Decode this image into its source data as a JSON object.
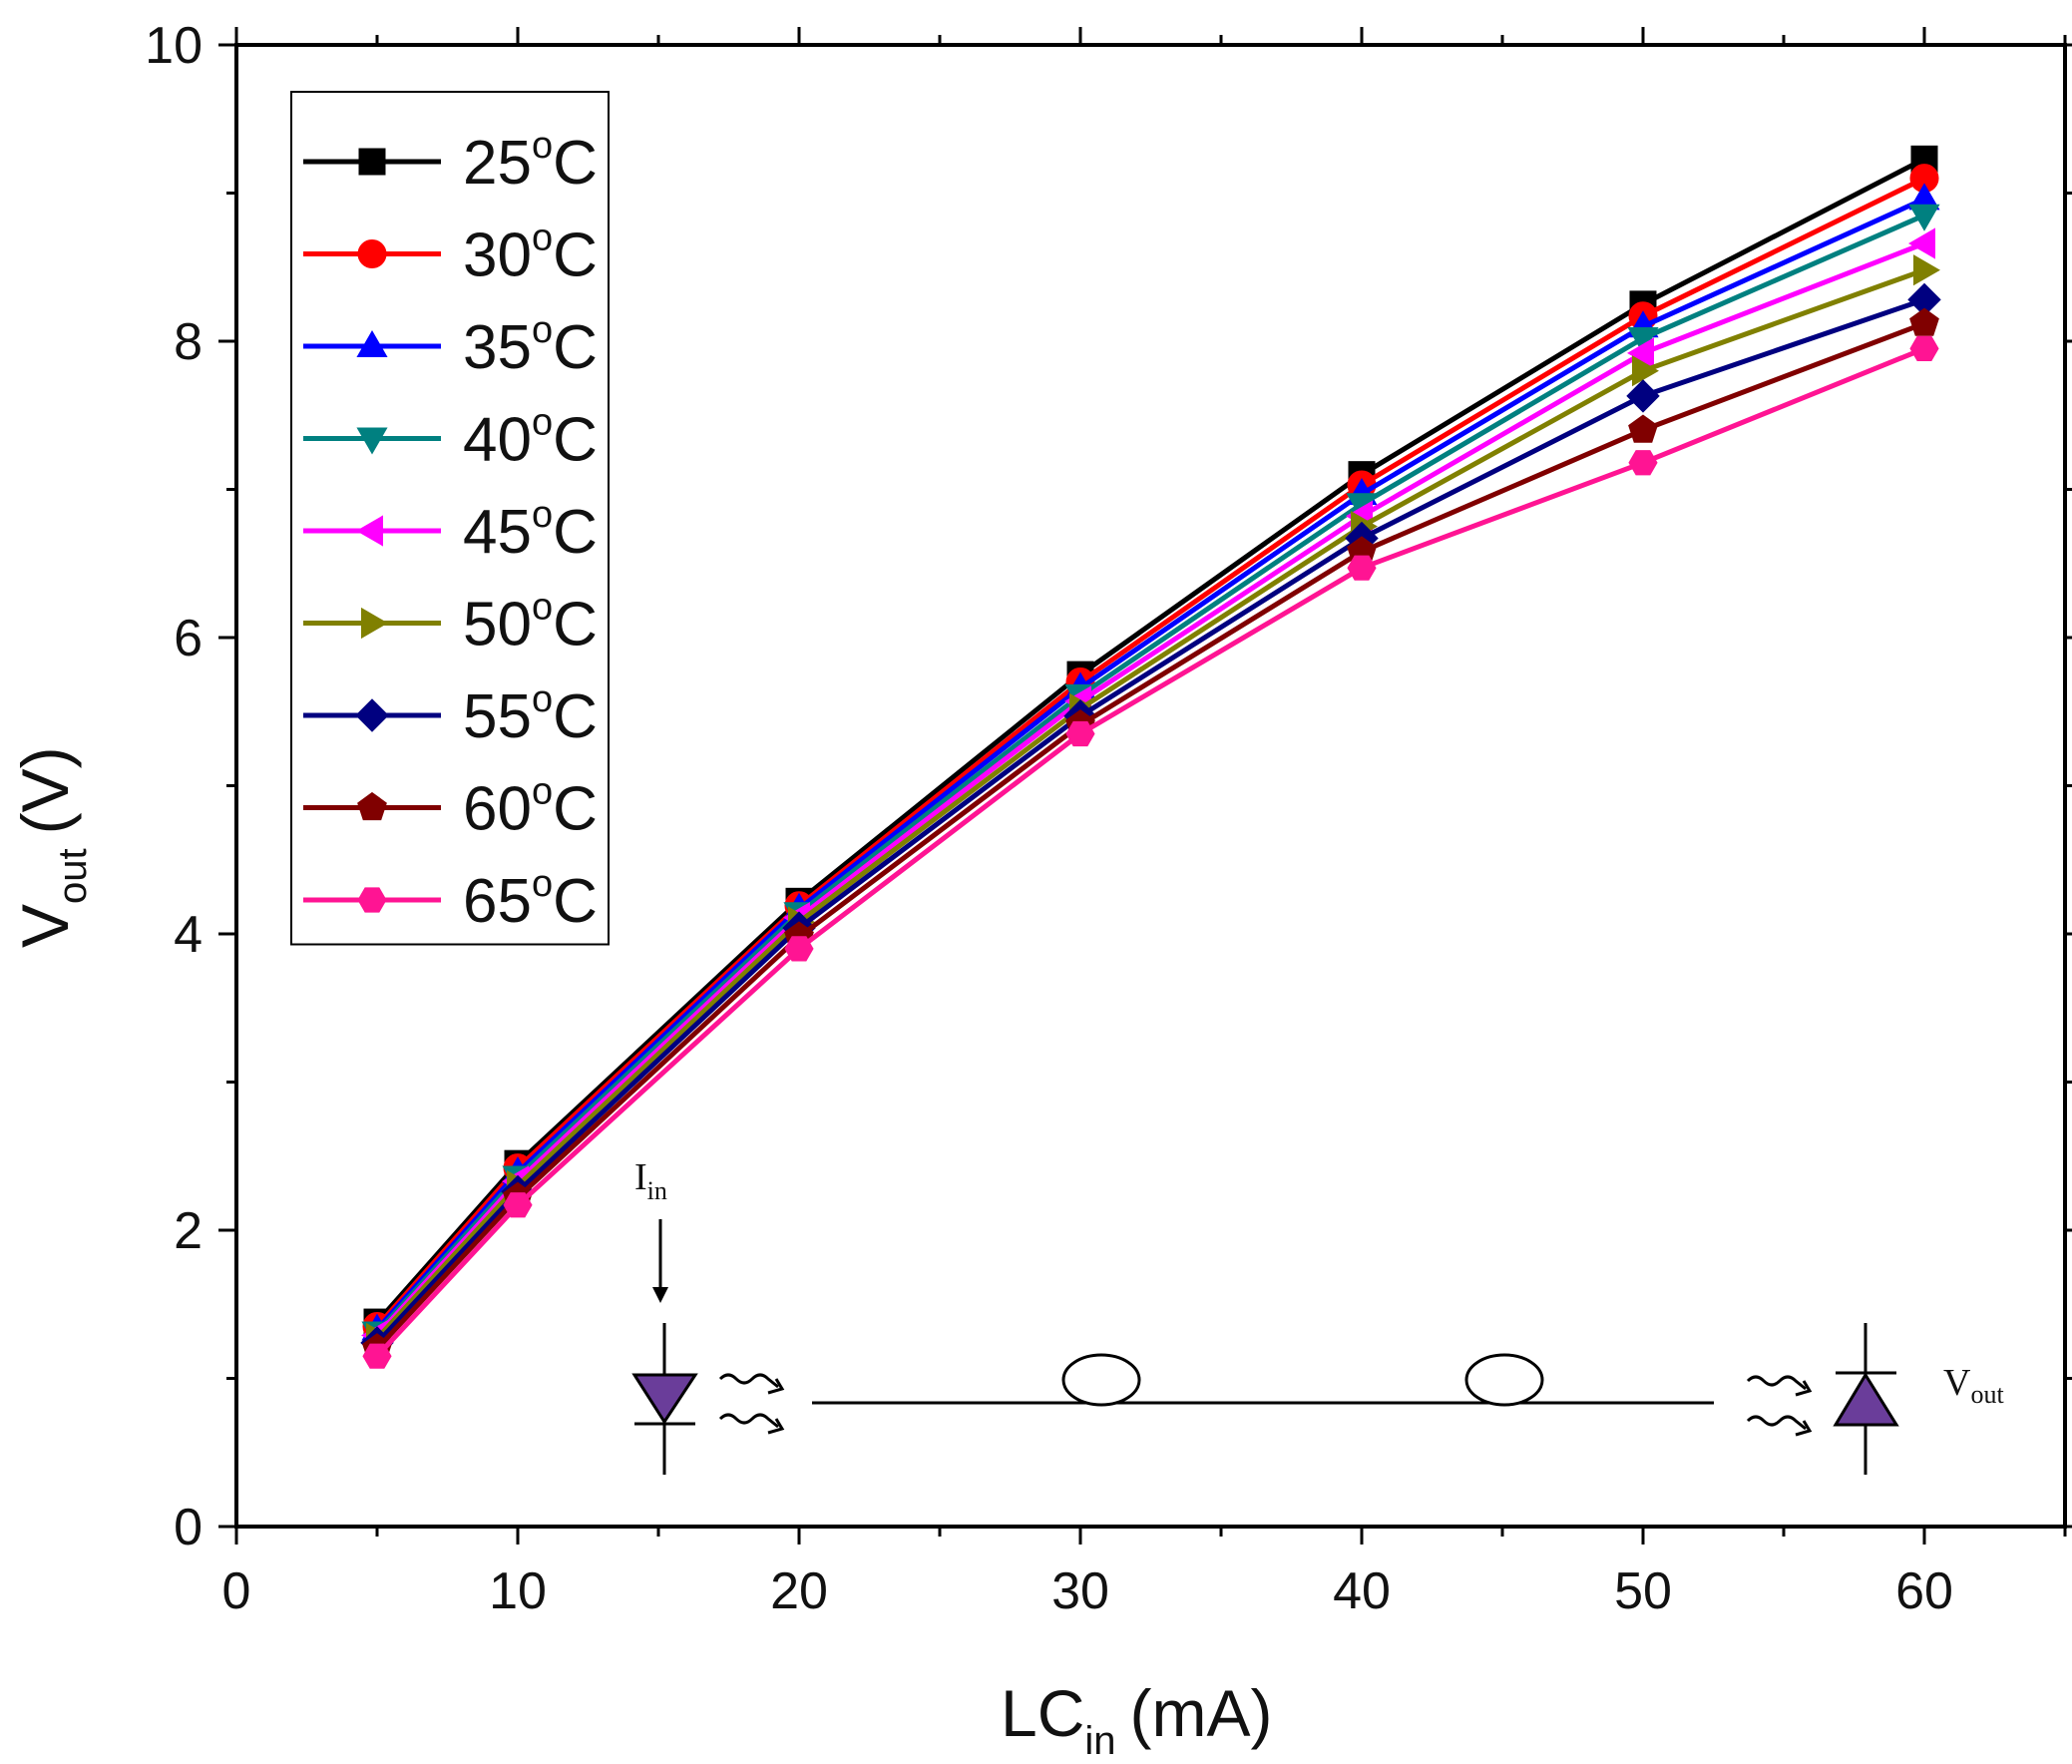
{
  "chart_data": {
    "type": "line",
    "title": "",
    "xlabel": {
      "main": "LC",
      "sub": "in",
      "unit": "(mA)"
    },
    "ylabel": {
      "main": "V",
      "sub": "out",
      "unit": "(V)"
    },
    "xlim": [
      0,
      65
    ],
    "ylim": [
      0,
      10
    ],
    "xticks": [
      0,
      10,
      20,
      30,
      40,
      50,
      60
    ],
    "yticks": [
      0,
      2,
      4,
      6,
      8,
      10
    ],
    "x": [
      5,
      10,
      20,
      30,
      40,
      50,
      60
    ],
    "legend_position": "top-left",
    "series": [
      {
        "name": "25",
        "unit": "C",
        "degree": "o",
        "color": "#000000",
        "marker": "square",
        "values": [
          1.38,
          2.45,
          4.22,
          5.75,
          7.1,
          8.25,
          9.23
        ]
      },
      {
        "name": "30",
        "unit": "C",
        "degree": "o",
        "color": "#ff0000",
        "marker": "circle",
        "values": [
          1.35,
          2.42,
          4.19,
          5.7,
          7.03,
          8.17,
          9.1
        ]
      },
      {
        "name": "35",
        "unit": "C",
        "degree": "o",
        "color": "#0000ff",
        "marker": "triangle-up",
        "values": [
          1.33,
          2.39,
          4.17,
          5.66,
          6.97,
          8.1,
          8.96
        ]
      },
      {
        "name": "40",
        "unit": "C",
        "degree": "o",
        "color": "#008080",
        "marker": "triangle-down",
        "values": [
          1.31,
          2.36,
          4.14,
          5.61,
          6.9,
          8.02,
          8.85
        ]
      },
      {
        "name": "45",
        "unit": "C",
        "degree": "o",
        "color": "#ff00ff",
        "marker": "triangle-left",
        "values": [
          1.29,
          2.33,
          4.11,
          5.57,
          6.82,
          7.92,
          8.66
        ]
      },
      {
        "name": "50",
        "unit": "C",
        "degree": "o",
        "color": "#808000",
        "marker": "triangle-right",
        "values": [
          1.27,
          2.3,
          4.08,
          5.52,
          6.75,
          7.8,
          8.48
        ]
      },
      {
        "name": "55",
        "unit": "C",
        "degree": "o",
        "color": "#000080",
        "marker": "diamond",
        "values": [
          1.24,
          2.26,
          4.04,
          5.47,
          6.67,
          7.63,
          8.28
        ]
      },
      {
        "name": "60",
        "unit": "C",
        "degree": "o",
        "color": "#800000",
        "marker": "pentagon",
        "values": [
          1.2,
          2.22,
          3.98,
          5.41,
          6.58,
          7.4,
          8.12
        ]
      },
      {
        "name": "65",
        "unit": "C",
        "degree": "o",
        "color": "#ff1493",
        "marker": "hexagon",
        "values": [
          1.15,
          2.17,
          3.9,
          5.35,
          6.47,
          7.18,
          7.95
        ]
      }
    ],
    "annotations": {
      "input_current": {
        "main": "I",
        "sub": "in"
      },
      "output_voltage": {
        "main": "V",
        "sub": "out"
      }
    },
    "colors": {
      "axis": "#000000",
      "inset_fill": "#6a3d9a"
    }
  }
}
